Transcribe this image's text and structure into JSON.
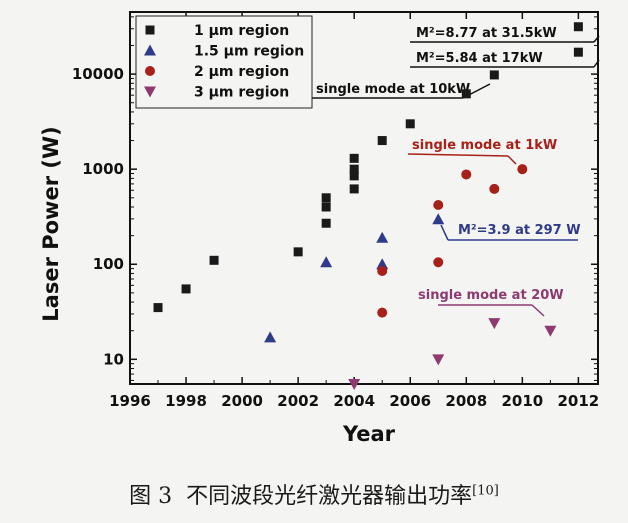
{
  "caption": {
    "prefix": "图 3",
    "text": "不同波段光纤激光器输出功率",
    "ref": "[10]"
  },
  "chart_data": {
    "type": "scatter",
    "title": "",
    "xlabel": "Year",
    "ylabel": "Laser Power (W)",
    "xlim": [
      1996,
      2012.7
    ],
    "ylim": [
      5.5,
      45000
    ],
    "yscale": "log",
    "grid": false,
    "legend_position": "top-left",
    "x_ticks": [
      1996,
      1998,
      2000,
      2002,
      2004,
      2006,
      2008,
      2010,
      2012
    ],
    "y_ticks": [
      10,
      100,
      1000,
      10000
    ],
    "series": [
      {
        "name": "1 μm region",
        "marker": "square",
        "color": "#1a1a1a",
        "points": [
          [
            1997,
            35
          ],
          [
            1998,
            55
          ],
          [
            1999,
            110
          ],
          [
            2002,
            135
          ],
          [
            2003,
            270
          ],
          [
            2003,
            400
          ],
          [
            2003,
            500
          ],
          [
            2004,
            620
          ],
          [
            2004,
            850
          ],
          [
            2004,
            1000
          ],
          [
            2004,
            1300
          ],
          [
            2005,
            2000
          ],
          [
            2006,
            3000
          ],
          [
            2008,
            6200
          ],
          [
            2009,
            9800
          ],
          [
            2012,
            17000
          ],
          [
            2012,
            31500
          ]
        ]
      },
      {
        "name": "1.5 μm region",
        "marker": "triangle-up",
        "color": "#2f3b8a",
        "points": [
          [
            2001,
            17
          ],
          [
            2003,
            105
          ],
          [
            2005,
            100
          ],
          [
            2005,
            190
          ],
          [
            2007,
            297
          ]
        ]
      },
      {
        "name": "2 μm region",
        "marker": "circle",
        "color": "#a8201a",
        "points": [
          [
            2005,
            31
          ],
          [
            2005,
            85
          ],
          [
            2007,
            105
          ],
          [
            2007,
            420
          ],
          [
            2008,
            880
          ],
          [
            2009,
            620
          ],
          [
            2010,
            1000
          ]
        ]
      },
      {
        "name": "3 μm region",
        "marker": "triangle-down",
        "color": "#8e3a6e",
        "points": [
          [
            2004,
            5.5
          ],
          [
            2007,
            10
          ],
          [
            2009,
            24
          ],
          [
            2011,
            20
          ]
        ]
      }
    ],
    "annotations": [
      {
        "text": "M²=8.77 at 31.5kW",
        "color": "#111111"
      },
      {
        "text": "M²=5.84 at 17kW",
        "color": "#111111"
      },
      {
        "text": "single mode at 10kW",
        "color": "#111111"
      },
      {
        "text": "single mode at 1kW",
        "color": "#a8201a"
      },
      {
        "text": "M²=3.9 at 297 W",
        "color": "#2f3b8a"
      },
      {
        "text": "single mode at 20W",
        "color": "#8e3a6e"
      }
    ]
  }
}
